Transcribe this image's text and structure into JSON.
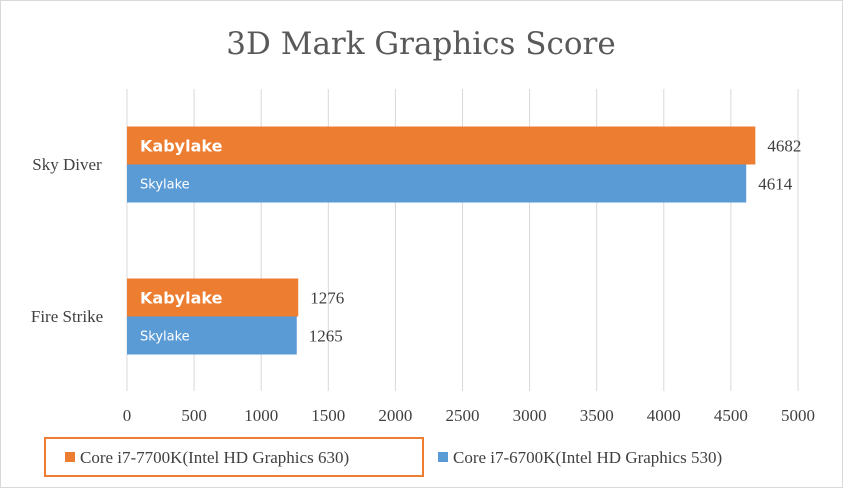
{
  "chart_data": {
    "type": "bar",
    "orientation": "horizontal",
    "title": "3D Mark Graphics Score",
    "categories": [
      "Sky Diver",
      "Fire Strike"
    ],
    "series": [
      {
        "name": "Core i7-7700K(Intel HD Graphics 630)",
        "values": [
          4682,
          1276
        ],
        "bar_label": "Kabylake",
        "color": "#ed7d31"
      },
      {
        "name": "Core i7-6700K(Intel HD Graphics 530)",
        "values": [
          4614,
          1265
        ],
        "bar_label": "Skylake",
        "color": "#5b9bd5"
      }
    ],
    "xlim": [
      0,
      5000
    ],
    "xticks": [
      "0",
      "500",
      "1000",
      "1500",
      "2000",
      "2500",
      "3000",
      "3500",
      "4000",
      "4500",
      "5000"
    ],
    "grid": true,
    "legend_position": "bottom",
    "legend_highlight_color": "#ed7d31"
  }
}
